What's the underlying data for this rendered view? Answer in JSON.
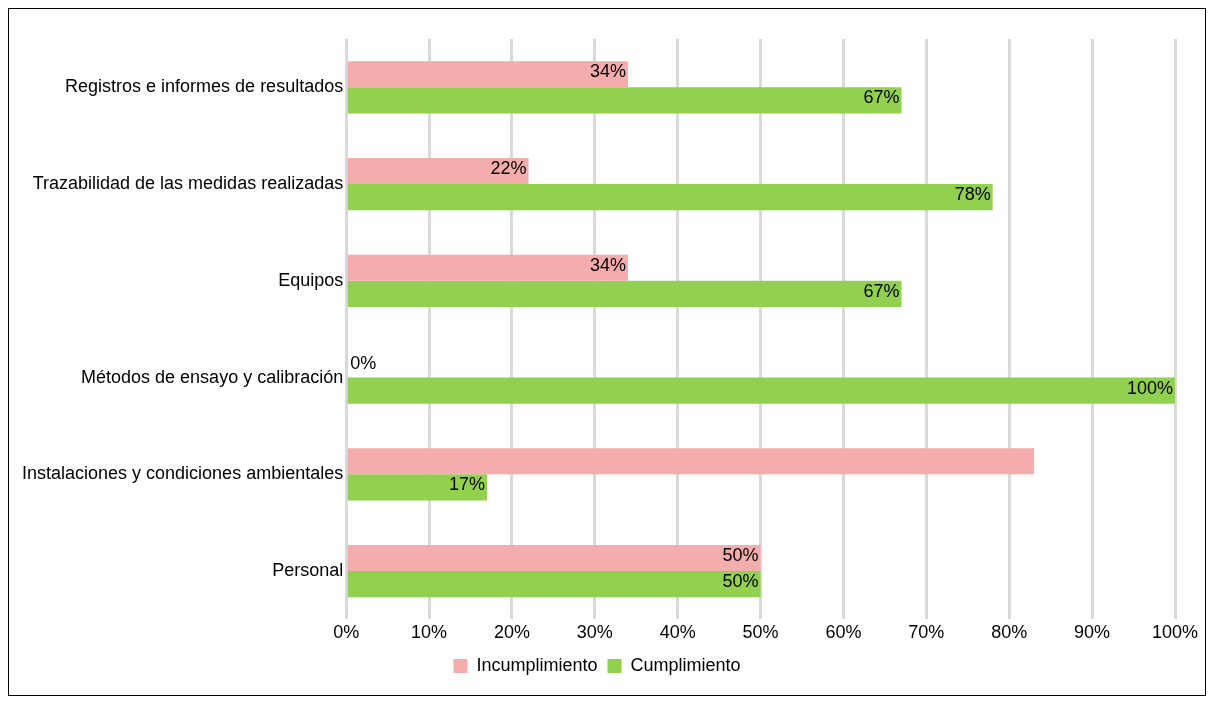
{
  "chart_data": {
    "type": "bar",
    "orientation": "horizontal",
    "categories": [
      "Registros e informes de resultados",
      "Trazabilidad de las medidas realizadas",
      "Equipos",
      "Métodos de ensayo y calibración",
      "Instalaciones y condiciones ambientales",
      "Personal"
    ],
    "series": [
      {
        "name": "Incumplimiento",
        "color": "#f4acac",
        "values": [
          34,
          22,
          34,
          0,
          83,
          50
        ],
        "value_labels": [
          "34%",
          "22%",
          "34%",
          "0%",
          null,
          "50%"
        ]
      },
      {
        "name": "Cumplimiento",
        "color": "#92d050",
        "values": [
          67,
          78,
          67,
          100,
          17,
          50
        ],
        "value_labels": [
          "67%",
          "78%",
          "67%",
          "100%",
          "17%",
          "50%"
        ]
      }
    ],
    "xlim": [
      0,
      100
    ],
    "xticks": [
      {
        "value": 0,
        "label": "0%"
      },
      {
        "value": 10,
        "label": "10%"
      },
      {
        "value": 20,
        "label": "20%"
      },
      {
        "value": 30,
        "label": "30%"
      },
      {
        "value": 40,
        "label": "40%"
      },
      {
        "value": 50,
        "label": "50%"
      },
      {
        "value": 60,
        "label": "60%"
      },
      {
        "value": 70,
        "label": "70%"
      },
      {
        "value": 80,
        "label": "80%"
      },
      {
        "value": 90,
        "label": "90%"
      },
      {
        "value": 100,
        "label": "100%"
      }
    ],
    "grid": "x",
    "legend": "bottom"
  }
}
